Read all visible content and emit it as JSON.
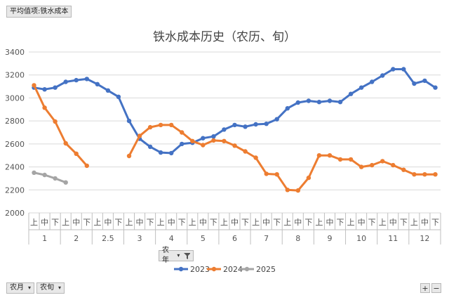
{
  "value_field": "平均值项:铁水成本",
  "row_field_year": "农年",
  "col_field_month": "农月",
  "col_field_period": "农旬",
  "controls": {
    "zoom_in": "+",
    "zoom_out": "−"
  },
  "chart_data": {
    "type": "line",
    "title": "铁水成本历史（农历、旬）",
    "ylim": [
      2000,
      3400
    ],
    "yticks": [
      2000,
      2200,
      2400,
      2600,
      2800,
      3000,
      3200,
      3400
    ],
    "grid": true,
    "legend_position": "bottom",
    "months": [
      "1",
      "2",
      "2.5",
      "3",
      "4",
      "5",
      "6",
      "7",
      "8",
      "9",
      "10",
      "11",
      "12"
    ],
    "periods": [
      "上",
      "中",
      "下"
    ],
    "colors": {
      "2023": "#4472c4",
      "2024": "#ed7d31",
      "2025": "#a5a5a5"
    },
    "series": [
      {
        "name": "2023",
        "values": [
          3090,
          3075,
          3090,
          3140,
          3155,
          3165,
          3120,
          3065,
          3010,
          2800,
          2645,
          2575,
          2525,
          2520,
          2600,
          2610,
          2650,
          2665,
          2725,
          2765,
          2750,
          2770,
          2775,
          2815,
          2910,
          2960,
          2975,
          2965,
          2975,
          2965,
          3035,
          3090,
          3140,
          3195,
          3250,
          3250,
          3125,
          3150,
          3090
        ]
      },
      {
        "name": "2024",
        "values": [
          3110,
          2915,
          2795,
          2605,
          2515,
          2410,
          null,
          null,
          null,
          2495,
          2670,
          2745,
          2765,
          2765,
          2700,
          2625,
          2590,
          2630,
          2625,
          2585,
          2535,
          2480,
          2340,
          2335,
          2200,
          2195,
          2305,
          2500,
          2500,
          2465,
          2465,
          2400,
          2415,
          2450,
          2415,
          2375,
          2335,
          2335,
          2335
        ]
      },
      {
        "name": "2025",
        "values": [
          2350,
          2330,
          2300,
          2265,
          null,
          null,
          null,
          null,
          null,
          null,
          null,
          null,
          null,
          null,
          null,
          null,
          null,
          null,
          null,
          null,
          null,
          null,
          null,
          null,
          null,
          null,
          null,
          null,
          null,
          null,
          null,
          null,
          null,
          null,
          null,
          null,
          null,
          null,
          null
        ]
      }
    ]
  }
}
